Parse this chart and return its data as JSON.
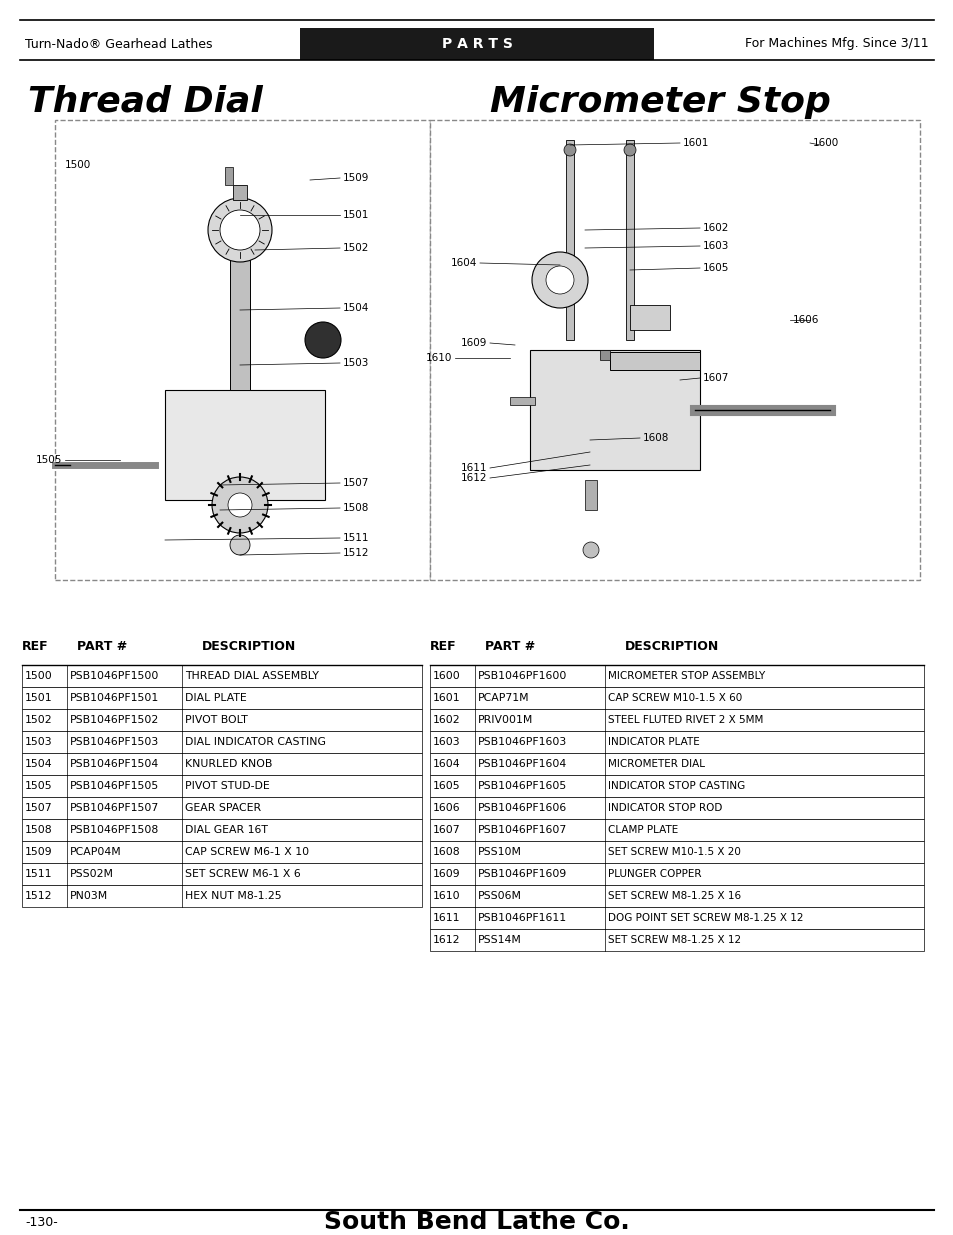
{
  "page_title_left": "Thread Dial",
  "page_title_right": "Micrometer Stop",
  "header_left": "Turn-Nado® Gearhead Lathes",
  "header_center": "P A R T S",
  "header_right": "For Machines Mfg. Since 3/11",
  "footer_left": "-130-",
  "footer_center": "South Bend Lathe Co.",
  "bg_color": "#ffffff",
  "header_bg": "#1a1a1a",
  "header_text_color": "#ffffff",
  "table_left_headers": [
    "REF",
    "PART #",
    "DESCRIPTION"
  ],
  "table_left_data": [
    [
      "1500",
      "PSB1046PF1500",
      "THREAD DIAL ASSEMBLY"
    ],
    [
      "1501",
      "PSB1046PF1501",
      "DIAL PLATE"
    ],
    [
      "1502",
      "PSB1046PF1502",
      "PIVOT BOLT"
    ],
    [
      "1503",
      "PSB1046PF1503",
      "DIAL INDICATOR CASTING"
    ],
    [
      "1504",
      "PSB1046PF1504",
      "KNURLED KNOB"
    ],
    [
      "1505",
      "PSB1046PF1505",
      "PIVOT STUD-DE"
    ],
    [
      "1507",
      "PSB1046PF1507",
      "GEAR SPACER"
    ],
    [
      "1508",
      "PSB1046PF1508",
      "DIAL GEAR 16T"
    ],
    [
      "1509",
      "PCAP04M",
      "CAP SCREW M6-1 X 10"
    ],
    [
      "1511",
      "PSS02M",
      "SET SCREW M6-1 X 6"
    ],
    [
      "1512",
      "PN03M",
      "HEX NUT M8-1.25"
    ]
  ],
  "table_right_headers": [
    "REF",
    "PART #",
    "DESCRIPTION"
  ],
  "table_right_data": [
    [
      "1600",
      "PSB1046PF1600",
      "MICROMETER STOP ASSEMBLY"
    ],
    [
      "1601",
      "PCAP71M",
      "CAP SCREW M10-1.5 X 60"
    ],
    [
      "1602",
      "PRIV001M",
      "STEEL FLUTED RIVET 2 X 5MM"
    ],
    [
      "1603",
      "PSB1046PF1603",
      "INDICATOR PLATE"
    ],
    [
      "1604",
      "PSB1046PF1604",
      "MICROMETER DIAL"
    ],
    [
      "1605",
      "PSB1046PF1605",
      "INDICATOR STOP CASTING"
    ],
    [
      "1606",
      "PSB1046PF1606",
      "INDICATOR STOP ROD"
    ],
    [
      "1607",
      "PSB1046PF1607",
      "CLAMP PLATE"
    ],
    [
      "1608",
      "PSS10M",
      "SET SCREW M10-1.5 X 20"
    ],
    [
      "1609",
      "PSB1046PF1609",
      "PLUNGER COPPER"
    ],
    [
      "1610",
      "PSS06M",
      "SET SCREW M8-1.25 X 16"
    ],
    [
      "1611",
      "PSB1046PF1611",
      "DOG POINT SET SCREW M8-1.25 X 12"
    ],
    [
      "1612",
      "PSS14M",
      "SET SCREW M8-1.25 X 12"
    ]
  ]
}
